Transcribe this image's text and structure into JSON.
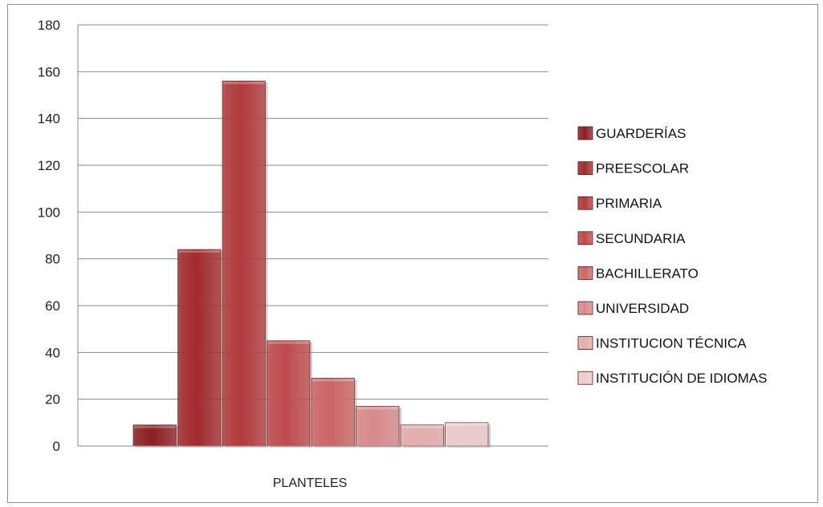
{
  "chart_data": {
    "type": "bar",
    "title": "",
    "xlabel": "",
    "ylabel": "",
    "categories": [
      "PLANTELES"
    ],
    "series": [
      {
        "name": "GUARDERÍAS",
        "values": [
          9
        ],
        "color": "#8e1f22"
      },
      {
        "name": "PREESCOLAR",
        "values": [
          84
        ],
        "color": "#a32a2d"
      },
      {
        "name": "PRIMARIA",
        "values": [
          156
        ],
        "color": "#b3393c"
      },
      {
        "name": "SECUNDARIA",
        "values": [
          45
        ],
        "color": "#c04a4c"
      },
      {
        "name": "BACHILLERATO",
        "values": [
          29
        ],
        "color": "#cd6566"
      },
      {
        "name": "UNIVERSIDAD",
        "values": [
          17
        ],
        "color": "#d98a8b"
      },
      {
        "name": "INSTITUCION  TÉCNICA",
        "values": [
          9
        ],
        "color": "#e4acac"
      },
      {
        "name": "INSTITUCIÓN  DE IDIOMAS",
        "values": [
          10
        ],
        "color": "#eccbcb"
      }
    ],
    "ylim": [
      0,
      180
    ],
    "yticks": [
      0,
      20,
      40,
      60,
      80,
      100,
      120,
      140,
      160,
      180
    ],
    "grid": true,
    "legend_position": "right"
  }
}
